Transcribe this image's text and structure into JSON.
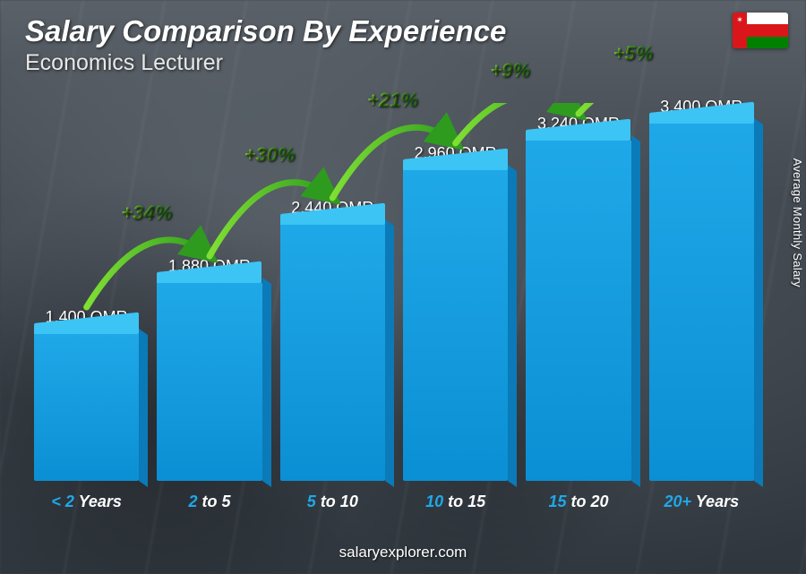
{
  "title": "Salary Comparison By Experience",
  "subtitle": "Economics Lecturer",
  "ylabel": "Average Monthly Salary",
  "footer": "salaryexplorer.com",
  "flag": {
    "band_color": "#db161b",
    "stripe_colors": [
      "#ffffff",
      "#db161b",
      "#008000"
    ]
  },
  "chart": {
    "type": "bar",
    "currency_suffix": " OMR",
    "max_value": 3400,
    "bar_top_color": "#3cc4f4",
    "bar_front_gradient_from": "#1fa8e8",
    "bar_front_gradient_to": "#0b8fd4",
    "bar_side_color": "#0a7bb8",
    "background_color": "#3a4148",
    "text_color": "#ffffff",
    "xlabel_accent_color": "#1fa8e8",
    "title_fontsize": 33,
    "subtitle_fontsize": 25,
    "value_fontsize": 18,
    "xlabel_fontsize": 18,
    "pct_fontsize": 22,
    "pct_color_light": "#8fe83a",
    "pct_color_dark": "#2e9b1f",
    "arrow_stroke_light": "#7fe033",
    "arrow_stroke_dark": "#2e9b1f",
    "bars": [
      {
        "xlabel_accent": "< 2",
        "xlabel_rest": " Years",
        "value": 1400,
        "value_label": "1,400 OMR"
      },
      {
        "xlabel_accent": "2",
        "xlabel_rest": " to 5",
        "value": 1880,
        "value_label": "1,880 OMR",
        "pct": "+34%"
      },
      {
        "xlabel_accent": "5",
        "xlabel_rest": " to 10",
        "value": 2440,
        "value_label": "2,440 OMR",
        "pct": "+30%"
      },
      {
        "xlabel_accent": "10",
        "xlabel_rest": " to 15",
        "value": 2960,
        "value_label": "2,960 OMR",
        "pct": "+21%"
      },
      {
        "xlabel_accent": "15",
        "xlabel_rest": " to 20",
        "value": 3240,
        "value_label": "3,240 OMR",
        "pct": "+9%"
      },
      {
        "xlabel_accent": "20+",
        "xlabel_rest": " Years",
        "value": 3400,
        "value_label": "3,400 OMR",
        "pct": "+5%"
      }
    ]
  }
}
